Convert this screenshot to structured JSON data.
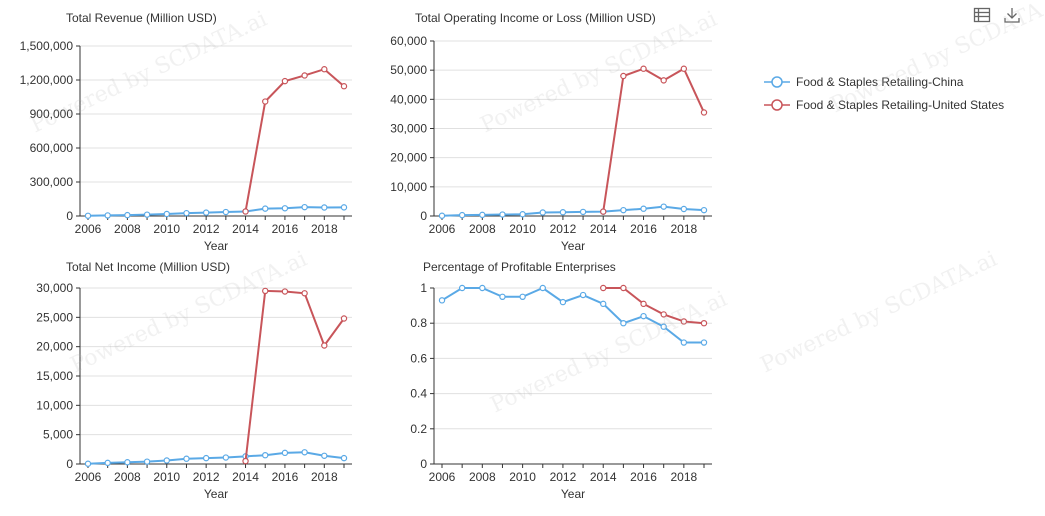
{
  "watermark": "Powered by SCDATA.ai",
  "colors": {
    "china": "#5aa9e6",
    "us": "#c8555a",
    "axis": "#333333",
    "grid": "#e0e0e0",
    "text": "#333333"
  },
  "toolbar": {
    "data_view_icon": "data-view-icon",
    "download_icon": "download-icon"
  },
  "legend": [
    {
      "name": "Food & Staples Retailing-China",
      "color": "#5aa9e6"
    },
    {
      "name": "Food & Staples Retailing-United States",
      "color": "#c8555a"
    }
  ],
  "chart_data": [
    {
      "type": "line",
      "title": "Total Revenue (Million USD)",
      "xlabel": "Year",
      "ylabel": "",
      "x": [
        2006,
        2007,
        2008,
        2009,
        2010,
        2011,
        2012,
        2013,
        2014,
        2015,
        2016,
        2017,
        2018,
        2019
      ],
      "xticks": [
        "2006",
        "2008",
        "2010",
        "2012",
        "2014",
        "2016",
        "2018"
      ],
      "yticks": [
        "0",
        "300,000",
        "600,000",
        "900,000",
        "1,200,000",
        "1,500,000"
      ],
      "ylim": [
        0,
        1500000
      ],
      "series": [
        {
          "name": "Food & Staples Retailing-China",
          "values": [
            2000,
            5000,
            8000,
            12000,
            18000,
            25000,
            30000,
            35000,
            40000,
            65000,
            68000,
            78000,
            75000,
            76000
          ]
        },
        {
          "name": "Food & Staples Retailing-United States",
          "values": [
            null,
            null,
            null,
            null,
            null,
            null,
            null,
            null,
            40000,
            1010000,
            1190000,
            1240000,
            1295000,
            1145000
          ]
        }
      ]
    },
    {
      "type": "line",
      "title": "Total Operating Income or Loss (Million USD)",
      "xlabel": "Year",
      "ylabel": "",
      "x": [
        2006,
        2007,
        2008,
        2009,
        2010,
        2011,
        2012,
        2013,
        2014,
        2015,
        2016,
        2017,
        2018,
        2019
      ],
      "xticks": [
        "2006",
        "2008",
        "2010",
        "2012",
        "2014",
        "2016",
        "2018"
      ],
      "yticks": [
        "0",
        "10,000",
        "20,000",
        "30,000",
        "40,000",
        "50,000",
        "60,000"
      ],
      "ylim": [
        0,
        60000
      ],
      "series": [
        {
          "name": "Food & Staples Retailing-China",
          "values": [
            100,
            300,
            400,
            500,
            600,
            1200,
            1300,
            1400,
            1500,
            2000,
            2500,
            3200,
            2400,
            2000
          ]
        },
        {
          "name": "Food & Staples Retailing-United States",
          "values": [
            null,
            null,
            null,
            null,
            null,
            null,
            null,
            null,
            1500,
            48000,
            50500,
            46500,
            50500,
            35500
          ]
        }
      ]
    },
    {
      "type": "line",
      "title": "Total Net Income (Million USD)",
      "xlabel": "Year",
      "ylabel": "",
      "x": [
        2006,
        2007,
        2008,
        2009,
        2010,
        2011,
        2012,
        2013,
        2014,
        2015,
        2016,
        2017,
        2018,
        2019
      ],
      "xticks": [
        "2006",
        "2008",
        "2010",
        "2012",
        "2014",
        "2016",
        "2018"
      ],
      "yticks": [
        "0",
        "5,000",
        "10,000",
        "15,000",
        "20,000",
        "25,000",
        "30,000"
      ],
      "ylim": [
        0,
        30000
      ],
      "series": [
        {
          "name": "Food & Staples Retailing-China",
          "values": [
            50,
            200,
            300,
            400,
            600,
            900,
            1000,
            1100,
            1300,
            1500,
            1900,
            2000,
            1400,
            1000
          ]
        },
        {
          "name": "Food & Staples Retailing-United States",
          "values": [
            null,
            null,
            null,
            null,
            null,
            null,
            null,
            null,
            500,
            29500,
            29400,
            29100,
            20200,
            24800
          ]
        }
      ]
    },
    {
      "type": "line",
      "title": "Percentage of Profitable Enterprises",
      "xlabel": "Year",
      "ylabel": "",
      "x": [
        2006,
        2007,
        2008,
        2009,
        2010,
        2011,
        2012,
        2013,
        2014,
        2015,
        2016,
        2017,
        2018,
        2019
      ],
      "xticks": [
        "2006",
        "2008",
        "2010",
        "2012",
        "2014",
        "2016",
        "2018"
      ],
      "yticks": [
        "0",
        "0.2",
        "0.4",
        "0.6",
        "0.8",
        "1"
      ],
      "ylim": [
        0,
        1
      ],
      "series": [
        {
          "name": "Food & Staples Retailing-China",
          "values": [
            0.93,
            1,
            1,
            0.95,
            0.95,
            1,
            0.92,
            0.96,
            0.91,
            0.8,
            0.84,
            0.78,
            0.69,
            0.69
          ]
        },
        {
          "name": "Food & Staples Retailing-United States",
          "values": [
            null,
            null,
            null,
            null,
            null,
            null,
            null,
            null,
            1,
            1,
            0.91,
            0.85,
            0.81,
            0.8
          ]
        }
      ]
    }
  ]
}
